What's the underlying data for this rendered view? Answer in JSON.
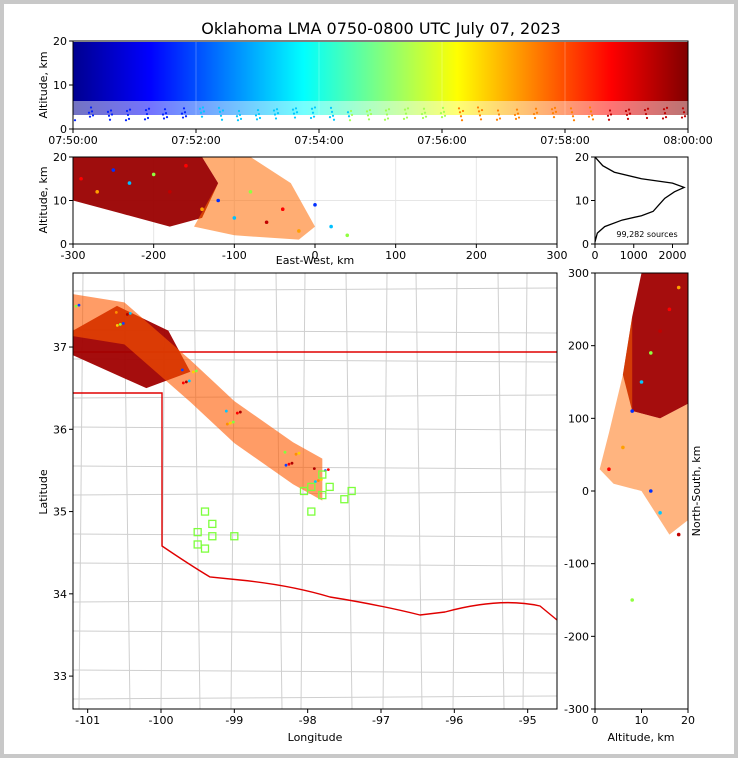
{
  "chart_data": [
    {
      "panel": "time-altitude",
      "type": "scatter",
      "title": "Oklahoma LMA 0750-0800 UTC July 07, 2023",
      "ylabel": "Altitude, km",
      "xlim": [
        "07:50:00",
        "08:00:00"
      ],
      "ylim": [
        0,
        20
      ],
      "xticks": [
        "07:50:00",
        "07:52:00",
        "07:54:00",
        "07:56:00",
        "07:58:00",
        "08:00:00"
      ],
      "yticks": [
        0,
        10,
        20
      ],
      "grid": true,
      "color_encoding": "time (blue early → red late)",
      "source_altitude_band_km": [
        2,
        20
      ],
      "dense_altitude_km": [
        5,
        20
      ]
    },
    {
      "panel": "east-west-altitude",
      "type": "scatter",
      "xlabel": "East-West, km",
      "ylabel": "Altitude, km",
      "xlim": [
        -300,
        300
      ],
      "ylim": [
        0,
        20
      ],
      "xticks": [
        -300,
        -200,
        -100,
        0,
        100,
        200,
        300
      ],
      "yticks": [
        0,
        10,
        20
      ],
      "grid": true,
      "points": [
        {
          "x": -290,
          "y": 15
        },
        {
          "x": -270,
          "y": 12
        },
        {
          "x": -250,
          "y": 17
        },
        {
          "x": -230,
          "y": 14
        },
        {
          "x": -200,
          "y": 16
        },
        {
          "x": -180,
          "y": 12
        },
        {
          "x": -160,
          "y": 18
        },
        {
          "x": -140,
          "y": 8
        },
        {
          "x": -120,
          "y": 10
        },
        {
          "x": -100,
          "y": 6
        },
        {
          "x": -80,
          "y": 12
        },
        {
          "x": -60,
          "y": 5
        },
        {
          "x": -40,
          "y": 8
        },
        {
          "x": -20,
          "y": 3
        },
        {
          "x": 0,
          "y": 9
        },
        {
          "x": 20,
          "y": 4
        },
        {
          "x": 40,
          "y": 2
        }
      ]
    },
    {
      "panel": "altitude-histogram",
      "type": "line",
      "xlim": [
        0,
        2400
      ],
      "ylim": [
        0,
        20
      ],
      "xticks": [
        0,
        1000,
        2000
      ],
      "yticks": [
        0,
        10,
        20
      ],
      "annotation": "99,282 sources",
      "profile": [
        {
          "count": 0,
          "alt": 0.5
        },
        {
          "count": 60,
          "alt": 2.5
        },
        {
          "count": 250,
          "alt": 4
        },
        {
          "count": 700,
          "alt": 5.5
        },
        {
          "count": 1200,
          "alt": 6.5
        },
        {
          "count": 1500,
          "alt": 7.5
        },
        {
          "count": 1650,
          "alt": 9
        },
        {
          "count": 1800,
          "alt": 10.5
        },
        {
          "count": 2050,
          "alt": 12
        },
        {
          "count": 2300,
          "alt": 13
        },
        {
          "count": 2000,
          "alt": 14
        },
        {
          "count": 1200,
          "alt": 15
        },
        {
          "count": 500,
          "alt": 16.5
        },
        {
          "count": 200,
          "alt": 18
        },
        {
          "count": 50,
          "alt": 19.5
        },
        {
          "count": 0,
          "alt": 20
        }
      ]
    },
    {
      "panel": "plan-view",
      "type": "scatter",
      "xlabel": "Longitude",
      "ylabel": "Latitude",
      "xlim": [
        -101.2,
        -94.6
      ],
      "ylim": [
        32.6,
        37.9
      ],
      "xticks": [
        -101,
        -100,
        -99,
        -98,
        -97,
        -96,
        -95
      ],
      "yticks": [
        33,
        34,
        35,
        36,
        37
      ],
      "stations_marker": "light-green open squares",
      "stations": [
        {
          "lon": -99.4,
          "lat": 35.0
        },
        {
          "lon": -99.3,
          "lat": 34.85
        },
        {
          "lon": -99.5,
          "lat": 34.75
        },
        {
          "lon": -99.3,
          "lat": 34.7
        },
        {
          "lon": -99.0,
          "lat": 34.7
        },
        {
          "lon": -99.5,
          "lat": 34.6
        },
        {
          "lon": -99.4,
          "lat": 34.55
        },
        {
          "lon": -98.05,
          "lat": 35.25
        },
        {
          "lon": -97.95,
          "lat": 35.3
        },
        {
          "lon": -97.8,
          "lat": 35.2
        },
        {
          "lon": -97.7,
          "lat": 35.3
        },
        {
          "lon": -97.8,
          "lat": 35.45
        },
        {
          "lon": -97.95,
          "lat": 35.0
        },
        {
          "lon": -97.5,
          "lat": 35.15
        },
        {
          "lon": -97.4,
          "lat": 35.25
        }
      ],
      "source_region": [
        {
          "lon": -101.2,
          "lat": 37.4
        },
        {
          "lon": -100.5,
          "lat": 37.3
        },
        {
          "lon": -99.6,
          "lat": 36.6
        },
        {
          "lon": -99.0,
          "lat": 36.1
        },
        {
          "lon": -98.2,
          "lat": 35.6
        },
        {
          "lon": -97.8,
          "lat": 35.4
        }
      ]
    },
    {
      "panel": "altitude-north-south",
      "type": "scatter",
      "xlabel": "Altitude, km",
      "ylabel": "North-South, km",
      "xlim": [
        0,
        20
      ],
      "ylim": [
        -300,
        300
      ],
      "xticks": [
        0,
        10,
        20
      ],
      "yticks": [
        -300,
        -200,
        -100,
        0,
        100,
        200,
        300
      ],
      "points": [
        {
          "alt": 3,
          "ns": 30
        },
        {
          "alt": 6,
          "ns": 60
        },
        {
          "alt": 8,
          "ns": 110
        },
        {
          "alt": 10,
          "ns": 150
        },
        {
          "alt": 12,
          "ns": 190
        },
        {
          "alt": 14,
          "ns": 220
        },
        {
          "alt": 16,
          "ns": 250
        },
        {
          "alt": 18,
          "ns": 280
        },
        {
          "alt": 12,
          "ns": 0
        },
        {
          "alt": 14,
          "ns": -30
        },
        {
          "alt": 8,
          "ns": -150
        },
        {
          "alt": 18,
          "ns": -60
        }
      ]
    }
  ]
}
